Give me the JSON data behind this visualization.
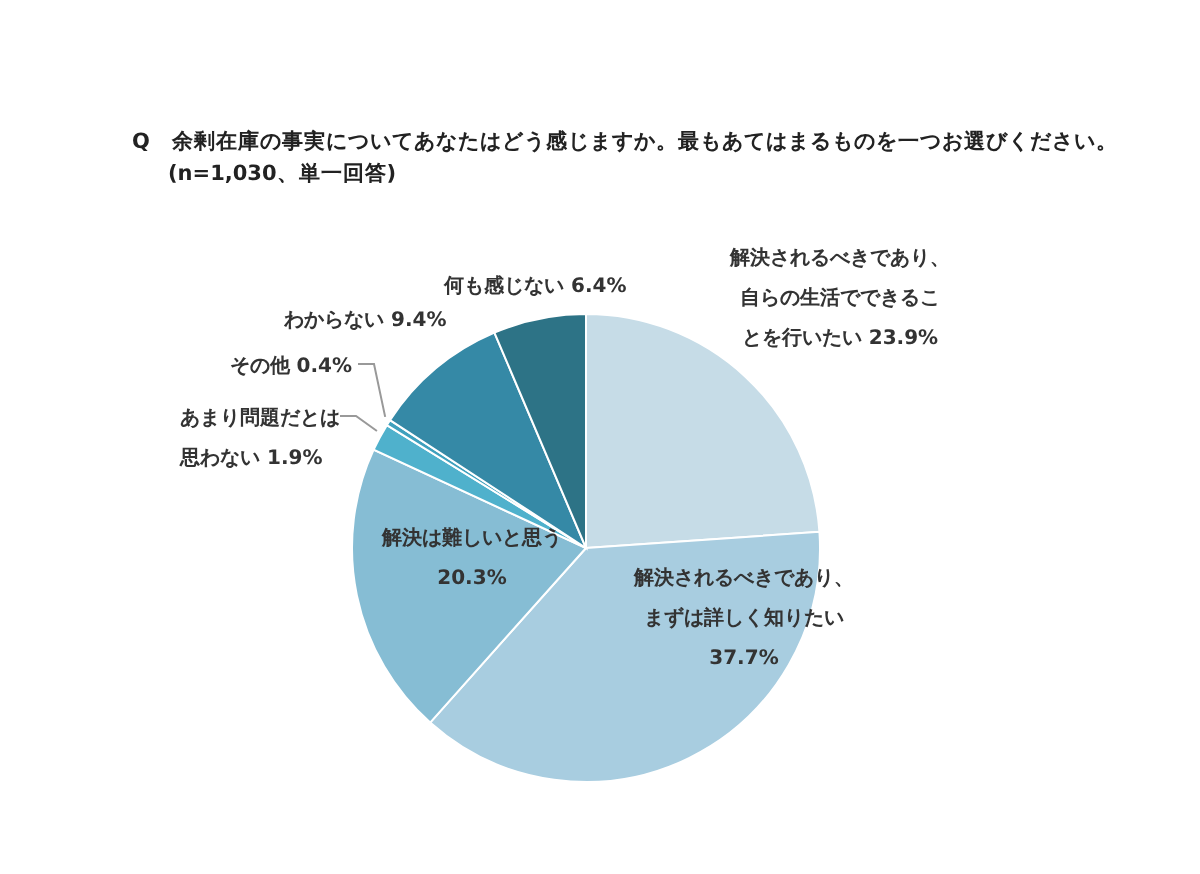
{
  "chart_data": {
    "type": "pie",
    "title": "Q　余剰在庫の事実についてあなたはどう感じますか。最もあてはまるものを一つお選びください。",
    "subtitle": "(n=1,030、単一回答)",
    "categories": [
      "解決されるべきであり、自らの生活でできることを行いたい",
      "解決されるべきであり、まずは詳しく知りたい",
      "解決は難しいと思う",
      "あまり問題だとは思わない",
      "その他",
      "わからない",
      "何も感じない"
    ],
    "values": [
      23.9,
      37.7,
      20.3,
      1.9,
      0.4,
      9.4,
      6.4
    ],
    "value_labels": [
      "23.9%",
      "37.7%",
      "20.3%",
      "1.9%",
      "0.4%",
      "9.4%",
      "6.4%"
    ],
    "colors": [
      "#c6dce7",
      "#a8cde0",
      "#86bdd4",
      "#4fb1cc",
      "#3fa0bd",
      "#3589a6",
      "#2d7386"
    ]
  }
}
